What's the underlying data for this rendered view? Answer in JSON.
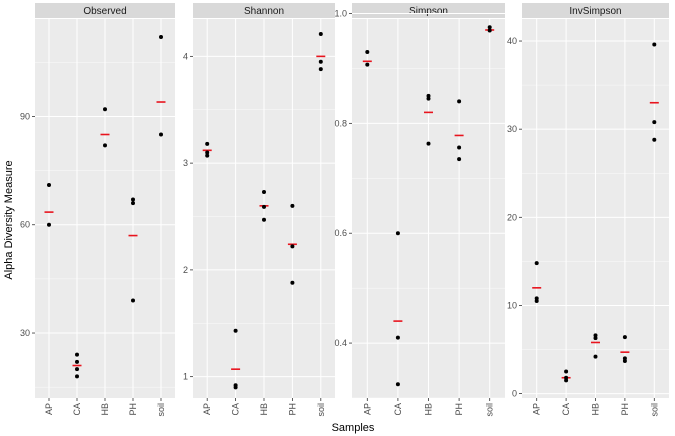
{
  "chart_data": {
    "type": "scatter",
    "xlabel": "Samples",
    "ylabel": "Alpha Diversity Measure",
    "categories": [
      "AP",
      "CA",
      "HB",
      "PH",
      "soil"
    ],
    "colors": {
      "point": "#000000",
      "mean_bar": "#e8141e",
      "panel_bg": "#ebebeb",
      "grid": "#ffffff",
      "strip_bg": "#d9d9d9"
    },
    "panels": [
      {
        "title": "Observed",
        "ylim": [
          12,
          117
        ],
        "yticks": [
          30,
          60,
          90
        ],
        "ytick_labels": [
          "30",
          "60",
          "90"
        ],
        "series": [
          {
            "category": "AP",
            "points": [
              71,
              60
            ],
            "mean": 63.5
          },
          {
            "category": "CA",
            "points": [
              24,
              22,
              20,
              18
            ],
            "mean": 21
          },
          {
            "category": "HB",
            "points": [
              92,
              82
            ],
            "mean": 85
          },
          {
            "category": "PH",
            "points": [
              67,
              66,
              39
            ],
            "mean": 57
          },
          {
            "category": "soil",
            "points": [
              112,
              85
            ],
            "mean": 94
          }
        ]
      },
      {
        "title": "Shannon",
        "ylim": [
          0.8,
          4.35
        ],
        "yticks": [
          1,
          2,
          3,
          4
        ],
        "ytick_labels": [
          "1",
          "2",
          "3",
          "4"
        ],
        "series": [
          {
            "category": "AP",
            "points": [
              3.18,
              3.1,
              3.07
            ],
            "mean": 3.12
          },
          {
            "category": "CA",
            "points": [
              1.43,
              0.92,
              0.9
            ],
            "mean": 1.07
          },
          {
            "category": "HB",
            "points": [
              2.73,
              2.59,
              2.47
            ],
            "mean": 2.6
          },
          {
            "category": "PH",
            "points": [
              2.6,
              2.22,
              1.88
            ],
            "mean": 2.24
          },
          {
            "category": "soil",
            "points": [
              4.21,
              3.95,
              3.88
            ],
            "mean": 4.0
          }
        ]
      },
      {
        "title": "Simpson",
        "ylim": [
          0.3,
          0.99
        ],
        "yticks": [
          0.4,
          0.6,
          0.8,
          1.0
        ],
        "ytick_labels": [
          "0.4",
          "0.6",
          "0.8",
          "1.0"
        ],
        "series": [
          {
            "category": "AP",
            "points": [
              0.93,
              0.907
            ],
            "mean": 0.913
          },
          {
            "category": "CA",
            "points": [
              0.6,
              0.41,
              0.325
            ],
            "mean": 0.44
          },
          {
            "category": "HB",
            "points": [
              0.85,
              0.845,
              0.763
            ],
            "mean": 0.82
          },
          {
            "category": "PH",
            "points": [
              0.84,
              0.756,
              0.735
            ],
            "mean": 0.778
          },
          {
            "category": "soil",
            "points": [
              0.975,
              0.969
            ],
            "mean": 0.97
          }
        ]
      },
      {
        "title": "InvSimpson",
        "ylim": [
          -0.5,
          42.5
        ],
        "yticks": [
          0,
          10,
          20,
          30,
          40
        ],
        "ytick_labels": [
          "0",
          "10",
          "20",
          "30",
          "40"
        ],
        "series": [
          {
            "category": "AP",
            "points": [
              14.8,
              10.8,
              10.5
            ],
            "mean": 12.0
          },
          {
            "category": "CA",
            "points": [
              2.5,
              1.8,
              1.5
            ],
            "mean": 1.8
          },
          {
            "category": "HB",
            "points": [
              6.6,
              6.3,
              4.2
            ],
            "mean": 5.8
          },
          {
            "category": "PH",
            "points": [
              6.4,
              4.0,
              3.7
            ],
            "mean": 4.7
          },
          {
            "category": "soil",
            "points": [
              39.6,
              30.8,
              28.8
            ],
            "mean": 33.0
          }
        ]
      }
    ]
  }
}
